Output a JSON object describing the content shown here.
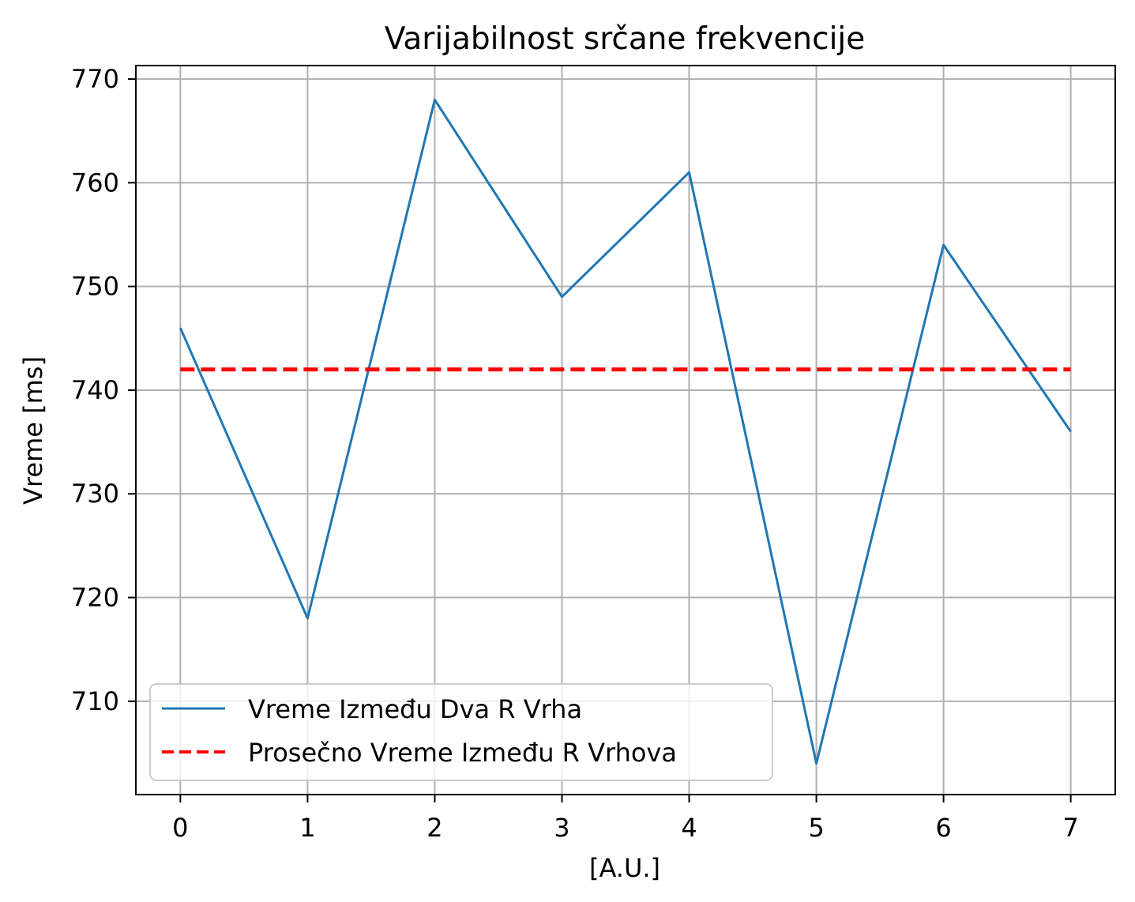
{
  "chart_data": {
    "type": "line",
    "title": "Varijabilnost srčane frekvencije",
    "xlabel": "[A.U.]",
    "ylabel": "Vreme [ms]",
    "x": [
      0,
      1,
      2,
      3,
      4,
      5,
      6,
      7
    ],
    "xlim": [
      -0.35,
      7.35
    ],
    "ylim": [
      701,
      771.3
    ],
    "xticks": [
      0,
      1,
      2,
      3,
      4,
      5,
      6,
      7
    ],
    "yticks": [
      710,
      720,
      730,
      740,
      750,
      760,
      770
    ],
    "grid": true,
    "legend_position": "lower-left",
    "series": [
      {
        "name": "Vreme Između Dva R Vrha",
        "style": "solid",
        "color": "#1f77b4",
        "values": [
          746,
          718,
          768,
          749,
          761,
          704,
          754,
          736
        ]
      },
      {
        "name": "Prosečno Vreme Između R Vrhova",
        "style": "dashed",
        "color": "#ff0000",
        "values": [
          742,
          742,
          742,
          742,
          742,
          742,
          742,
          742
        ]
      }
    ]
  }
}
